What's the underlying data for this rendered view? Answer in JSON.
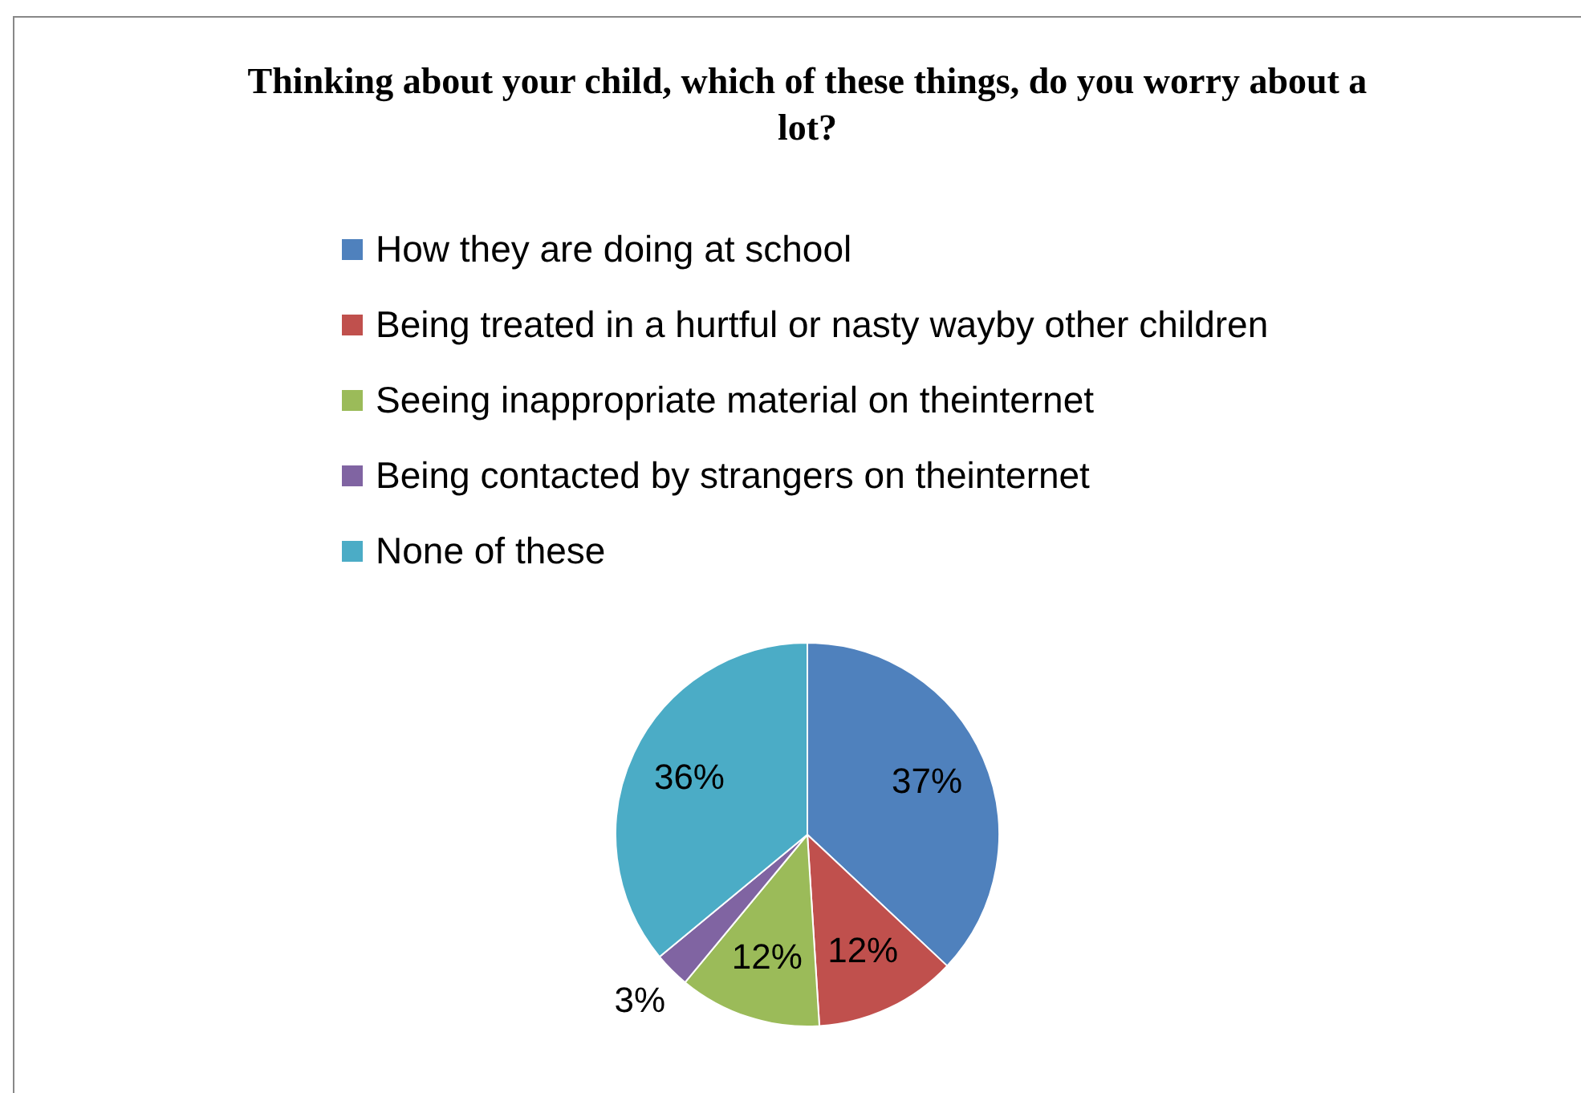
{
  "chart_data": {
    "type": "pie",
    "title": "Thinking about your child, which of these things, do you worry about a lot?",
    "categories": [
      "How they are doing at school",
      "Being treated in a hurtful or nasty wayby other children",
      "Seeing inappropriate material on theinternet",
      "Being contacted by strangers on theinternet",
      "None of these"
    ],
    "values": [
      37,
      12,
      12,
      3,
      36
    ],
    "colors": [
      "#4f81bd",
      "#c0504d",
      "#9bbb59",
      "#8064a2",
      "#4bacc6"
    ],
    "value_labels": [
      "37%",
      "12%",
      "12%",
      "3%",
      "36%"
    ],
    "legend": "top"
  }
}
